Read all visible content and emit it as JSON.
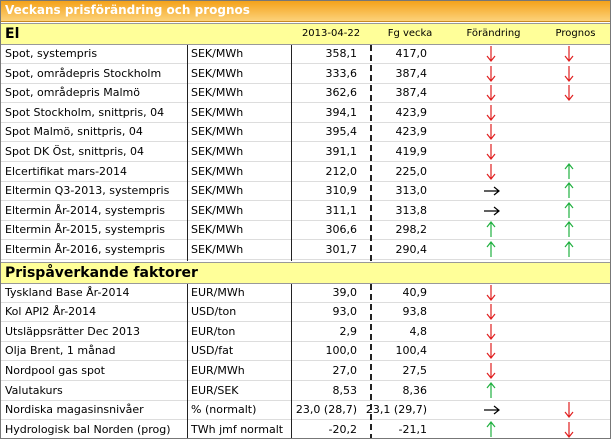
{
  "title": "Veckans prisförändring och prognos",
  "columns": {
    "date": "2013-04-22",
    "prev": "Fg vecka",
    "change": "Förändring",
    "forecast": "Prognos"
  },
  "sections": [
    {
      "name": "El",
      "rows": [
        {
          "label": "Spot, systempris",
          "unit": "SEK/MWh",
          "current": "358,1",
          "prev": "417,0",
          "change": "down",
          "forecast": "down"
        },
        {
          "label": "Spot, områdepris Stockholm",
          "unit": "SEK/MWh",
          "current": "333,6",
          "prev": "387,4",
          "change": "down",
          "forecast": "down"
        },
        {
          "label": "Spot, områdepris Malmö",
          "unit": "SEK/MWh",
          "current": "362,6",
          "prev": "387,4",
          "change": "down",
          "forecast": "down"
        },
        {
          "label": "Spot Stockholm, snittpris,  04",
          "unit": "SEK/MWh",
          "current": "394,1",
          "prev": "423,9",
          "change": "down",
          "forecast": null
        },
        {
          "label": "Spot Malmö, snittpris,  04",
          "unit": "SEK/MWh",
          "current": "395,4",
          "prev": "423,9",
          "change": "down",
          "forecast": null
        },
        {
          "label": "Spot DK Öst, snittpris,  04",
          "unit": "SEK/MWh",
          "current": "391,1",
          "prev": "419,9",
          "change": "down",
          "forecast": null
        },
        {
          "label": "Elcertifikat mars-2014",
          "unit": "SEK/MWh",
          "current": "212,0",
          "prev": "225,0",
          "change": "down",
          "forecast": "up"
        },
        {
          "label": "Eltermin Q3-2013, systempris",
          "unit": "SEK/MWh",
          "current": "310,9",
          "prev": "313,0",
          "change": "right",
          "forecast": "up"
        },
        {
          "label": "Eltermin År-2014, systempris",
          "unit": "SEK/MWh",
          "current": "311,1",
          "prev": "313,8",
          "change": "right",
          "forecast": "up"
        },
        {
          "label": "Eltermin År-2015, systempris",
          "unit": "SEK/MWh",
          "current": "306,6",
          "prev": "298,2",
          "change": "up",
          "forecast": "up"
        },
        {
          "label": "Eltermin År-2016, systempris",
          "unit": "SEK/MWh",
          "current": "301,7",
          "prev": "290,4",
          "change": "up",
          "forecast": "up"
        }
      ]
    },
    {
      "name": "Prispåverkande faktorer",
      "rows": [
        {
          "label": "Tyskland Base År-2014",
          "unit": "EUR/MWh",
          "current": "39,0",
          "prev": "40,9",
          "change": "down",
          "forecast": null
        },
        {
          "label": "Kol API2 År-2014",
          "unit": "USD/ton",
          "current": "93,0",
          "prev": "93,8",
          "change": "down",
          "forecast": null
        },
        {
          "label": "Utsläppsrätter Dec 2013",
          "unit": "EUR/ton",
          "current": "2,9",
          "prev": "4,8",
          "change": "down",
          "forecast": null
        },
        {
          "label": "Olja Brent, 1 månad",
          "unit": "USD/fat",
          "current": "100,0",
          "prev": "100,4",
          "change": "down",
          "forecast": null
        },
        {
          "label": "Nordpool gas spot",
          "unit": "EUR/MWh",
          "current": "27,0",
          "prev": "27,5",
          "change": "down",
          "forecast": null
        },
        {
          "label": "Valutakurs",
          "unit": "EUR/SEK",
          "current": "8,53",
          "prev": "8,36",
          "change": "up",
          "forecast": null
        },
        {
          "label": "Nordiska magasinsnivåer",
          "unit": "%  (normalt)",
          "current": "23,0 (28,7)",
          "prev": "23,1 (29,7)",
          "change": "right",
          "forecast": "down"
        },
        {
          "label": "Hydrologisk bal Norden (prog)",
          "unit": "TWh jmf normalt",
          "current": "-20,2",
          "prev": "-21,1",
          "change": "up",
          "forecast": "down"
        }
      ]
    }
  ]
}
